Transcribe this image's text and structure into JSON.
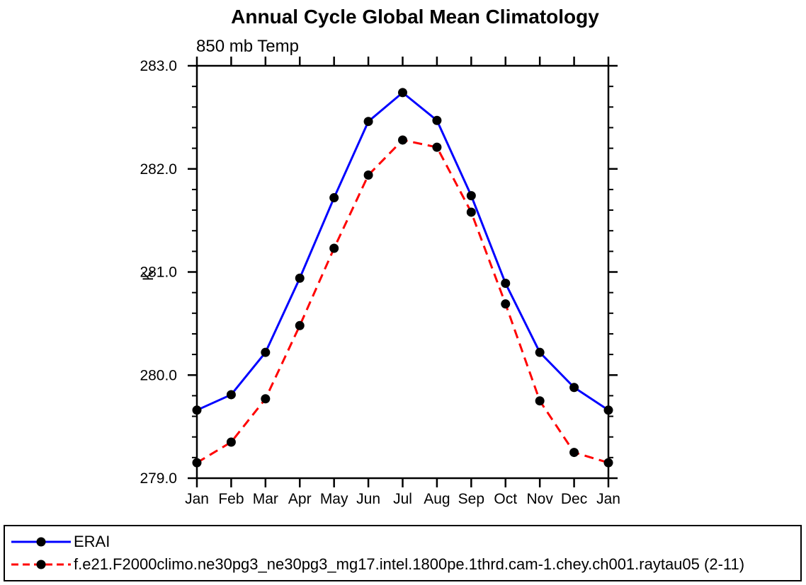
{
  "chart_data": {
    "type": "line",
    "title": "Annual Cycle Global Mean Climatology",
    "subtitle": "850 mb Temp",
    "ylabel": "K",
    "categories": [
      "Jan",
      "Feb",
      "Mar",
      "Apr",
      "May",
      "Jun",
      "Jul",
      "Aug",
      "Sep",
      "Oct",
      "Nov",
      "Dec",
      "Jan"
    ],
    "series": [
      {
        "name": "ERAI",
        "color": "#0000ff",
        "line_style": "solid",
        "marker": "black-dot",
        "values": [
          279.66,
          279.81,
          280.22,
          280.94,
          281.72,
          282.46,
          282.74,
          282.47,
          281.74,
          280.89,
          280.22,
          279.88,
          279.66
        ]
      },
      {
        "name": "f.e21.F2000climo.ne30pg3_ne30pg3_mg17.intel.1800pe.1thrd.cam-1.chey.ch001.raytau05 (2-11)",
        "color": "#ff0000",
        "line_style": "dashed",
        "marker": "black-dot",
        "values": [
          279.15,
          279.35,
          279.77,
          280.48,
          281.23,
          281.94,
          282.28,
          282.21,
          281.58,
          280.69,
          279.75,
          279.25,
          279.15
        ]
      }
    ],
    "ylim": [
      279.0,
      283.0
    ],
    "ytick_interval": 1.0,
    "yminor_interval": 0.2,
    "ytick_labels": [
      "279.0",
      "280.0",
      "281.0",
      "282.0",
      "283.0"
    ],
    "grid": false,
    "legend_position": "bottom-left-box",
    "marker_color": "#000000",
    "axis_color": "#000000"
  }
}
